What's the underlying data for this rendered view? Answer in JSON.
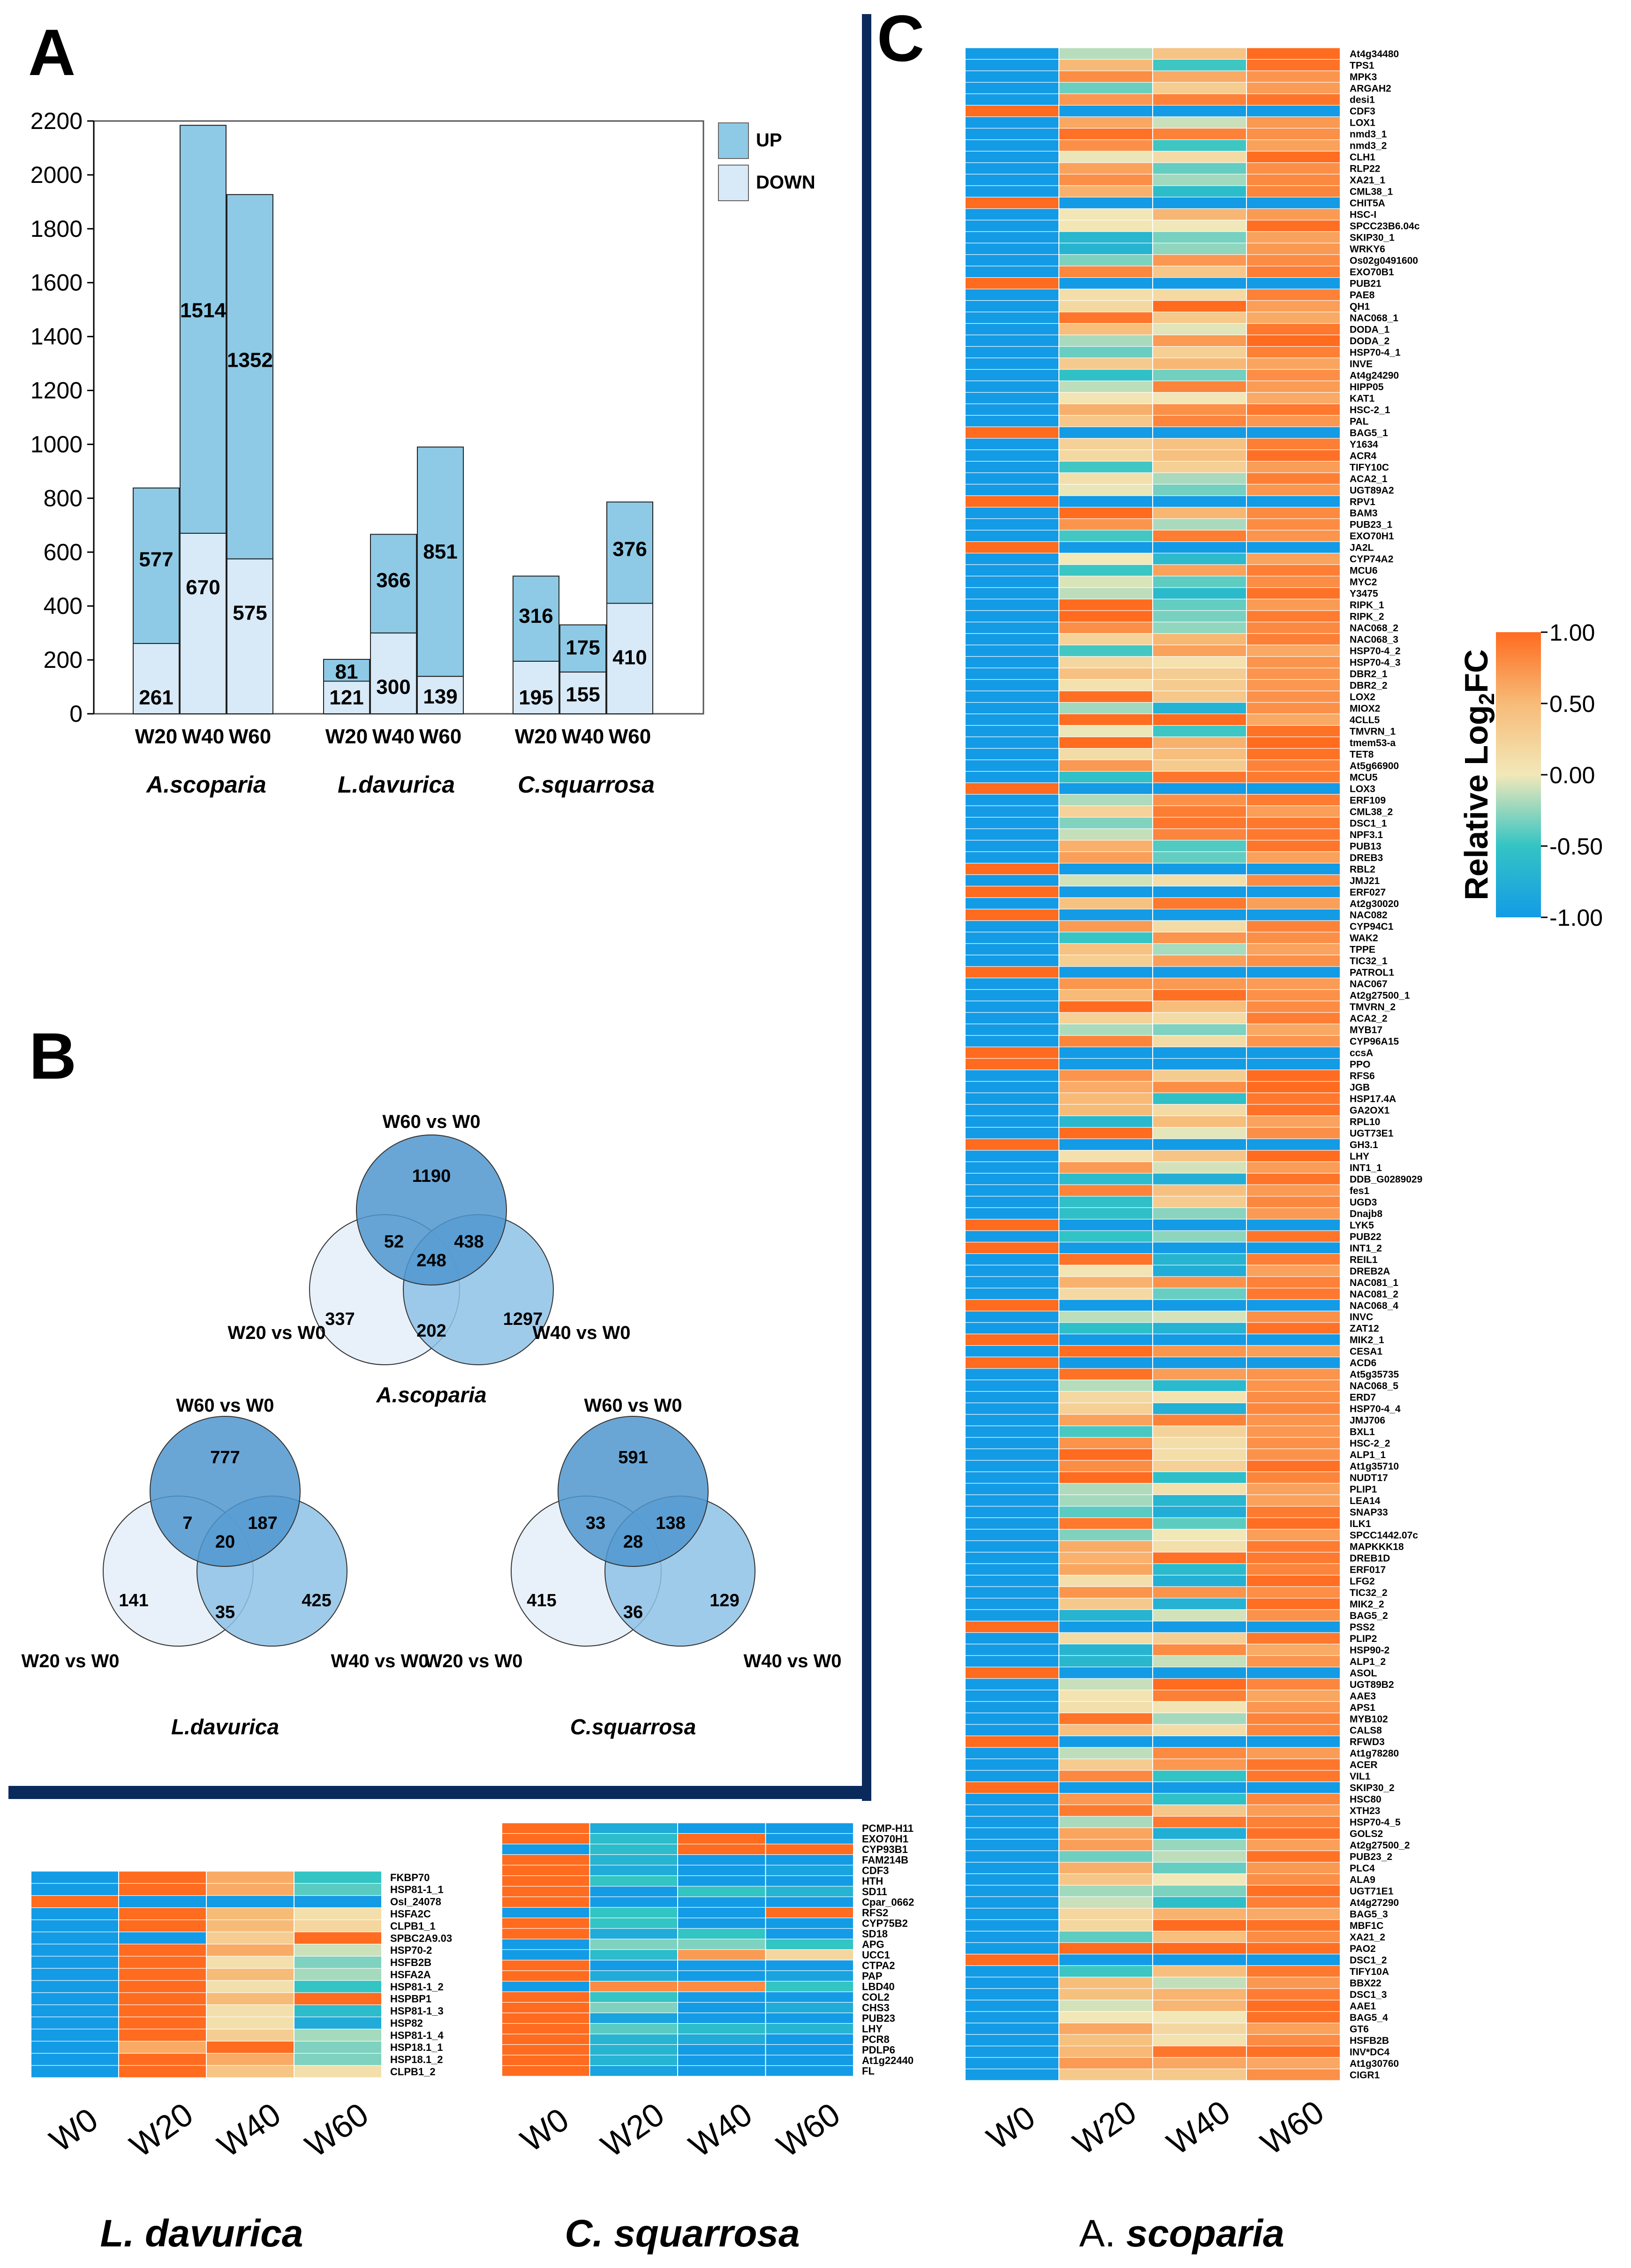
{
  "colors": {
    "up": "#8ecae6",
    "down": "#d8e9f7",
    "border": "#0b2a5c",
    "axis": "#000000",
    "venn_top": "#4f97cf",
    "venn_left": "#e6eff8",
    "venn_right": "#8ec2e6",
    "heat_low": "#1a9cdc",
    "heat_mid": "#f2e8b8",
    "heat_high": "#ff7a2e"
  },
  "panel_labels": {
    "a": "A",
    "b": "B",
    "c": "C"
  },
  "chart_data": [
    {
      "id": "A",
      "type": "bar",
      "stacked": true,
      "title": "",
      "xlabel": "",
      "ylabel": "",
      "ylim": [
        0,
        2200
      ],
      "yticks": [
        0,
        200,
        400,
        600,
        800,
        1000,
        1200,
        1400,
        1600,
        1800,
        2000,
        2200
      ],
      "groups": [
        {
          "species": "A.scoparia",
          "categories": [
            "W20",
            "W40",
            "W60"
          ]
        },
        {
          "species": "L.davurica",
          "categories": [
            "W20",
            "W40",
            "W60"
          ]
        },
        {
          "species": "C.squarrosa",
          "categories": [
            "W20",
            "W40",
            "W60"
          ]
        }
      ],
      "series": [
        {
          "name": "DOWN",
          "values": [
            261,
            670,
            575,
            121,
            300,
            139,
            195,
            155,
            410
          ]
        },
        {
          "name": "UP",
          "values": [
            577,
            1514,
            1352,
            81,
            366,
            851,
            316,
            175,
            376
          ]
        }
      ],
      "legend": [
        "UP",
        "DOWN"
      ],
      "legend_position": "top-right"
    },
    {
      "id": "B",
      "type": "venn",
      "diagrams": [
        {
          "species": "A.scoparia",
          "sets": [
            "W60 vs W0",
            "W20 vs W0",
            "W40 vs W0"
          ],
          "counts": {
            "top_only": 1190,
            "left_only": 337,
            "right_only": 1297,
            "top_left": 52,
            "top_right": 438,
            "left_right": 202,
            "all": 248
          }
        },
        {
          "species": "L.davurica",
          "sets": [
            "W60 vs W0",
            "W20 vs W0",
            "W40 vs W0"
          ],
          "counts": {
            "top_only": 777,
            "left_only": 141,
            "right_only": 425,
            "top_left": 7,
            "top_right": 187,
            "left_right": 35,
            "all": 20
          }
        },
        {
          "species": "C.squarrosa",
          "sets": [
            "W60 vs W0",
            "W20 vs W0",
            "W40 vs W0"
          ],
          "counts": {
            "top_only": 591,
            "left_only": 415,
            "right_only": 129,
            "top_left": 33,
            "top_right": 138,
            "left_right": 36,
            "all": 28
          }
        }
      ]
    },
    {
      "id": "C",
      "type": "heatmap",
      "species": "A. scoparia",
      "columns": [
        "W0",
        "W20",
        "W40",
        "W60"
      ],
      "colorbar": {
        "label": "Relative Log2FC",
        "min": -1.0,
        "max": 1.0,
        "ticks": [
          "1.00",
          "0.50",
          "0.00",
          "-0.50",
          "-1.00"
        ]
      },
      "rows": [
        "At4g34480",
        "TPS1",
        "MPK3",
        "ARGAH2",
        "desi1",
        "CDF3",
        "LOX1",
        "nmd3_1",
        "nmd3_2",
        "CLH1",
        "RLP22",
        "XA21_1",
        "CML38_1",
        "CHIT5A",
        "HSC-I",
        "SPCC23B6.04c",
        "SKIP30_1",
        "WRKY6",
        "Os02g0491600",
        "EXO70B1",
        "PUB21",
        "PAE8",
        "QH1",
        "NAC068_1",
        "DODA_1",
        "DODA_2",
        "HSP70-4_1",
        "INVE",
        "At4g24290",
        "HIPP05",
        "KAT1",
        "HSC-2_1",
        "PAL",
        "BAG5_1",
        "Y1634",
        "ACR4",
        "TIFY10C",
        "ACA2_1",
        "UGT89A2",
        "RPV1",
        "BAM3",
        "PUB23_1",
        "EXO70H1",
        "JA2L",
        "CYP74A2",
        "MCU6",
        "MYC2",
        "Y3475",
        "RIPK_1",
        "RIPK_2",
        "NAC068_2",
        "NAC068_3",
        "HSP70-4_2",
        "HSP70-4_3",
        "DBR2_1",
        "DBR2_2",
        "LOX2",
        "MIOX2",
        "4CLL5",
        "TMVRN_1",
        "tmem53-a",
        "TET8",
        "At5g66900",
        "MCU5",
        "LOX3",
        "ERF109",
        "CML38_2",
        "DSC1_1",
        "NPF3.1",
        "PUB13",
        "DREB3",
        "RBL2",
        "JMJ21",
        "ERF027",
        "At2g30020",
        "NAC082",
        "CYP94C1",
        "WAK2",
        "TPPE",
        "TIC32_1",
        "PATROL1",
        "NAC067",
        "At2g27500_1",
        "TMVRN_2",
        "ACA2_2",
        "MYB17",
        "CYP96A15",
        "ccsA",
        "PPO",
        "RFS6",
        "JGB",
        "HSP17.4A",
        "GA2OX1",
        "RPL10",
        "UGT73E1",
        "GH3.1",
        "LHY",
        "INT1_1",
        "DDB_G0289029",
        "fes1",
        "UGD3",
        "Dnajb8",
        "LYK5",
        "PUB22",
        "INT1_2",
        "REIL1",
        "DREB2A",
        "NAC081_1",
        "NAC081_2",
        "NAC068_4",
        "INVC",
        "ZAT12",
        "MIK2_1",
        "CESA1",
        "ACD6",
        "At5g35735",
        "NAC068_5",
        "ERD7",
        "HSP70-4_4",
        "JMJ706",
        "BXL1",
        "HSC-2_2",
        "ALP1_1",
        "At1g35710",
        "NUDT17",
        "PLIP1",
        "LEA14",
        "SNAP33",
        "ILK1",
        "SPCC1442.07c",
        "MAPKKK18",
        "DREB1D",
        "ERF017",
        "LFG2",
        "TIC32_2",
        "MIK2_2",
        "BAG5_2",
        "PSS2",
        "PLIP2",
        "HSP90-2",
        "ALP1_2",
        "ASOL",
        "UGT89B2",
        "AAE3",
        "APS1",
        "MYB102",
        "CALS8",
        "RFWD3",
        "At1g78280",
        "ACER",
        "VIL1",
        "SKIP30_2",
        "HSC80",
        "XTH23",
        "HSP70-4_5",
        "GOLS2",
        "At2g27500_2",
        "PUB23_2",
        "PLC4",
        "ALA9",
        "UGT71E1",
        "At4g27290",
        "BAG5_3",
        "MBF1C",
        "XA21_2",
        "PAO2",
        "DSC1_2",
        "TIFY10A",
        "BBX22",
        "DSC1_3",
        "AAE1",
        "BAG5_4",
        "GT6",
        "HSFB2B",
        "INV*DC4",
        "At1g30760",
        "CIGR1"
      ]
    },
    {
      "id": "L",
      "type": "heatmap",
      "species": "L. davurica",
      "columns": [
        "W0",
        "W20",
        "W40",
        "W60"
      ],
      "rows": [
        "FKBP70",
        "HSP81-1_1",
        "OsI_24078",
        "HSFA2C",
        "CLPB1_1",
        "SPBC2A9.03",
        "HSP70-2",
        "HSFB2B",
        "HSFA2A",
        "HSP81-1_2",
        "HSPBP1",
        "HSP81-1_3",
        "HSP82",
        "HSP81-1_4",
        "HSP18.1_1",
        "HSP18.1_2",
        "CLPB1_2"
      ],
      "values": [
        [
          -1.0,
          1.0,
          0.6,
          -0.5
        ],
        [
          -1.0,
          1.0,
          0.6,
          -0.4
        ],
        [
          1.0,
          -1.0,
          -1.0,
          -1.0
        ],
        [
          -1.0,
          1.0,
          0.5,
          0.1
        ],
        [
          -1.0,
          1.0,
          0.5,
          0.2
        ],
        [
          -1.0,
          -1.0,
          0.3,
          1.0
        ],
        [
          -1.0,
          1.0,
          0.6,
          -0.1
        ],
        [
          -1.0,
          1.0,
          0.1,
          -0.3
        ],
        [
          -1.0,
          1.0,
          0.5,
          -0.2
        ],
        [
          -1.0,
          1.0,
          0.1,
          -0.5
        ],
        [
          -1.0,
          1.0,
          0.5,
          1.0
        ],
        [
          -1.0,
          1.0,
          0.1,
          -0.6
        ],
        [
          -1.0,
          1.0,
          0.1,
          -0.8
        ],
        [
          -1.0,
          1.0,
          0.3,
          -0.2
        ],
        [
          -1.0,
          0.6,
          1.0,
          -0.3
        ],
        [
          -1.0,
          1.0,
          0.6,
          -0.3
        ],
        [
          -1.0,
          1.0,
          0.4,
          0.1
        ]
      ]
    },
    {
      "id": "S",
      "type": "heatmap",
      "species": "C. squarrosa",
      "columns": [
        "W0",
        "W20",
        "W40",
        "W60"
      ],
      "rows": [
        "PCMP-H11",
        "EXO70H1",
        "CYP93B1",
        "FAM214B",
        "CDF3",
        "HTH",
        "SD11",
        "Cpar_0662",
        "RFS2",
        "CYP75B2",
        "SD18",
        "APG",
        "UCC1",
        "CTPA2",
        "PAP",
        "LBD40",
        "COL2",
        "CHS3",
        "PUB23",
        "LHY",
        "PCR8",
        "PDLP6",
        "At1g22440",
        "FL"
      ],
      "values": [
        [
          1.0,
          -0.8,
          -1.0,
          -1.0
        ],
        [
          1.0,
          -0.6,
          1.0,
          -1.0
        ],
        [
          -1.0,
          -0.6,
          1.0,
          1.0
        ],
        [
          1.0,
          -0.7,
          -1.0,
          -1.0
        ],
        [
          1.0,
          -0.8,
          -1.0,
          -0.9
        ],
        [
          1.0,
          -0.5,
          -1.0,
          -1.0
        ],
        [
          1.0,
          -1.0,
          -0.5,
          -0.7
        ],
        [
          1.0,
          -1.0,
          -1.0,
          -1.0
        ],
        [
          -1.0,
          -0.5,
          -1.0,
          1.0
        ],
        [
          1.0,
          -0.5,
          -1.0,
          -1.0
        ],
        [
          1.0,
          -0.8,
          -0.5,
          -1.0
        ],
        [
          -1.0,
          -0.3,
          -0.3,
          -0.5
        ],
        [
          -1.0,
          -0.6,
          0.7,
          0.2
        ],
        [
          1.0,
          -1.0,
          -1.0,
          -1.0
        ],
        [
          1.0,
          -0.8,
          -1.0,
          -0.9
        ],
        [
          -1.0,
          0.8,
          0.8,
          -0.5
        ],
        [
          1.0,
          -0.5,
          -1.0,
          -1.0
        ],
        [
          1.0,
          -0.3,
          -1.0,
          -0.8
        ],
        [
          1.0,
          -0.9,
          -1.0,
          -1.0
        ],
        [
          1.0,
          -0.4,
          -0.6,
          -0.7
        ],
        [
          1.0,
          -0.7,
          -0.8,
          -1.0
        ],
        [
          1.0,
          -0.7,
          -1.0,
          -1.0
        ],
        [
          1.0,
          -0.7,
          -1.0,
          -1.0
        ],
        [
          1.0,
          -0.9,
          -1.0,
          -1.0
        ]
      ]
    }
  ],
  "bottom_labels": {
    "ld": "L. davurica",
    "cs": "C. squarrosa",
    "as_a": "A.",
    "as_b": "scoparia"
  }
}
